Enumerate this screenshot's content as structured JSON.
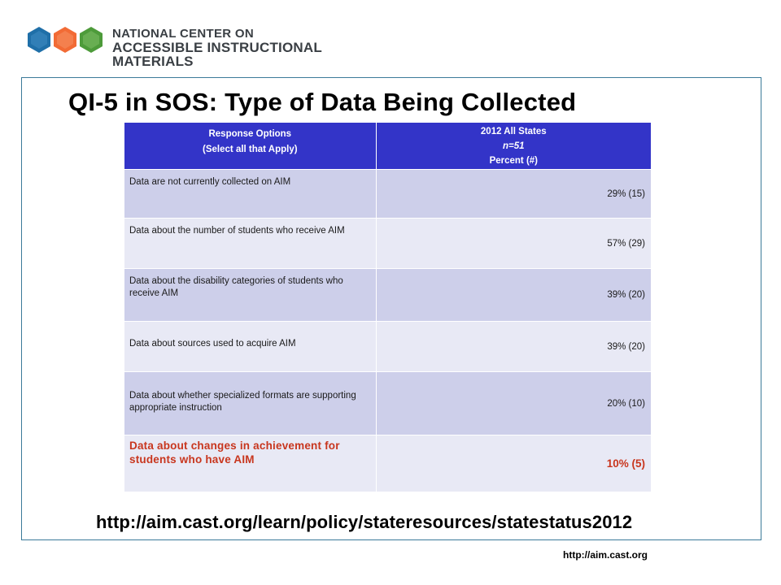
{
  "logo": {
    "line1": "NATIONAL CENTER ON",
    "line2": "ACCESSIBLE INSTRUCTIONAL MATERIALS",
    "colors": [
      "#1f6fa8",
      "#f26b35",
      "#4d9b3a"
    ]
  },
  "title": "QI-5 in SOS: Type of Data Being Collected",
  "table": {
    "header": {
      "col1_line1": "Response Options",
      "col1_line2": "(Select all that Apply)",
      "col2_line1": "2012 All States",
      "col2_line2": "n=51",
      "col2_line3": "Percent (#)"
    },
    "rows": [
      {
        "label": "Data are not currently collected on AIM",
        "value": "29% (15)"
      },
      {
        "label": "Data about the number of students who receive AIM",
        "value": "57% (29)"
      },
      {
        "label": "Data about the disability categories of students who receive AIM",
        "value": "39% (20)"
      },
      {
        "label": "Data about sources used to acquire AIM",
        "value": "39% (20)"
      },
      {
        "label": "Data about whether specialized formats are supporting appropriate instruction",
        "value": "20% (10)"
      },
      {
        "label": "Data about changes in achievement for students who have AIM",
        "value": "10% (5)"
      }
    ]
  },
  "footer": {
    "url_main": "http://aim.cast.org/learn/policy/stateresources/statestatus2012",
    "url_small": "http://aim.cast.org"
  }
}
